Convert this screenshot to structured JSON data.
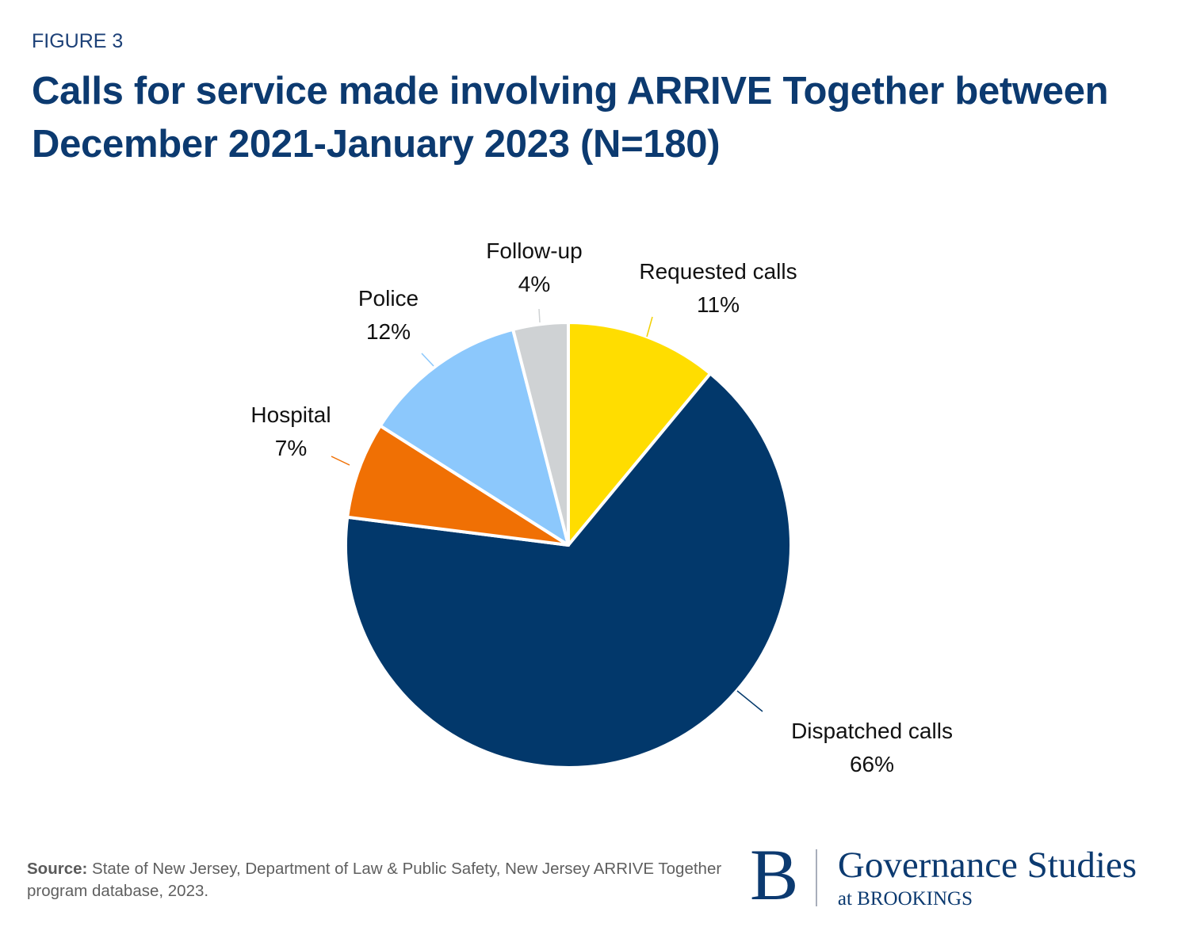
{
  "figure_label": "FIGURE 3",
  "title": "Calls for service made involving ARRIVE Together between December 2021-January 2023 (N=180)",
  "source": {
    "prefix": "Source:",
    "text": " State of New Jersey, Department of Law & Public Safety, New Jersey ARRIVE Together program database, 2023."
  },
  "logo": {
    "mark": "B",
    "name": "Governance Studies",
    "sub": "at BROOKINGS"
  },
  "chart_data": {
    "type": "pie",
    "title": "Calls for service made involving ARRIVE Together between December 2021-January 2023 (N=180)",
    "start_angle": "12 o'clock",
    "direction": "clockwise",
    "slices": [
      {
        "label": "Requested calls",
        "value": 11,
        "value_label": "11%",
        "color": "#ffdd00"
      },
      {
        "label": "Dispatched calls",
        "value": 66,
        "value_label": "66%",
        "color": "#02386b"
      },
      {
        "label": "Hospital",
        "value": 7,
        "value_label": "7%",
        "color": "#f07004"
      },
      {
        "label": "Police",
        "value": 12,
        "value_label": "12%",
        "color": "#8cc8fc"
      },
      {
        "label": "Follow-up",
        "value": 4,
        "value_label": "4%",
        "color": "#cfd2d4"
      }
    ]
  }
}
